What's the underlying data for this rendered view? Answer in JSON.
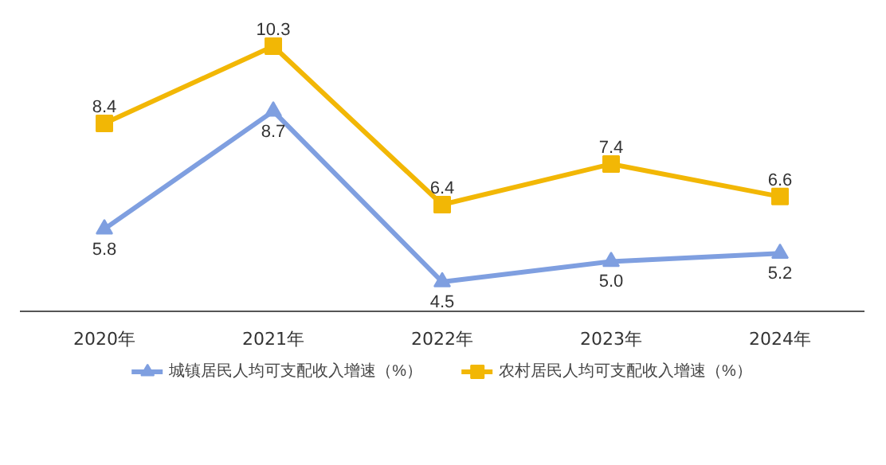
{
  "chart_data": {
    "type": "line",
    "categories": [
      "2020年",
      "2021年",
      "2022年",
      "2023年",
      "2024年"
    ],
    "series": [
      {
        "name": "城镇居民人均可支配收入增速（%）",
        "color": "#7f9fe0",
        "marker": "triangle",
        "values": [
          5.8,
          8.7,
          4.5,
          5.0,
          5.2
        ],
        "value_labels": [
          "5.8",
          "8.7",
          "4.5",
          "5.0",
          "5.2"
        ]
      },
      {
        "name": "农村居民人均可支配收入增速（%）",
        "color": "#f2b705",
        "marker": "square",
        "values": [
          8.4,
          10.3,
          6.4,
          7.4,
          6.6
        ],
        "value_labels": [
          "8.4",
          "10.3",
          "6.4",
          "7.4",
          "6.6"
        ]
      }
    ],
    "tick_labels": "x",
    "legend": "bottom"
  }
}
